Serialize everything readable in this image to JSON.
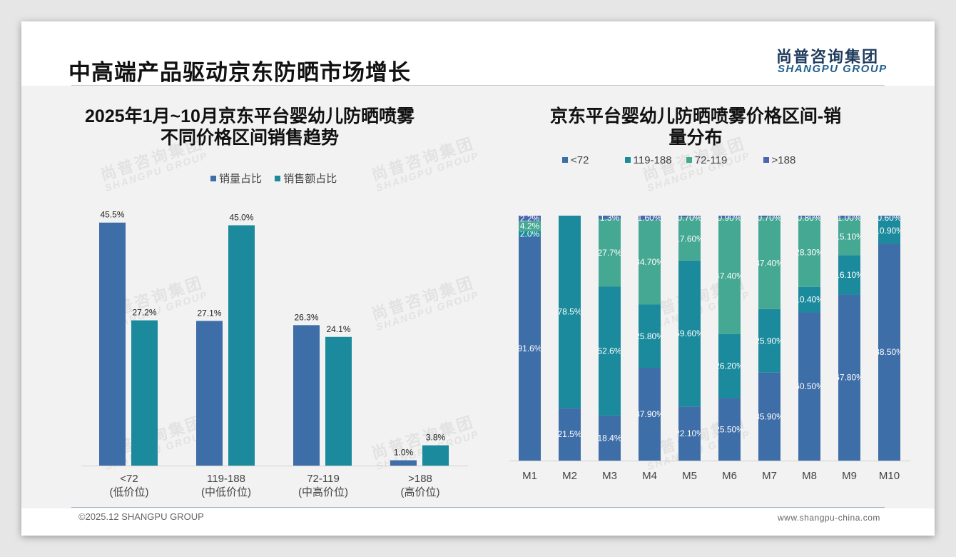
{
  "header": {
    "title": "中高端产品驱动京东防晒市场增长"
  },
  "logo": {
    "cn": "尚普咨询集团",
    "en": "SHANGPU GROUP"
  },
  "watermark": {
    "cn": "尚普咨询集团",
    "en": "SHANGPU GROUP"
  },
  "footer": {
    "copyright": "©2025.12 SHANGPU GROUP",
    "website": "www.shangpu-china.com"
  },
  "colors": {
    "blue": "#3e6ea8",
    "teal": "#1a8a9c",
    "green": "#44a892",
    "indigo": "#4a66ad"
  },
  "chart_data": [
    {
      "type": "bar",
      "title_line1": "2025年1月~10月京东平台婴幼儿防晒喷雾",
      "title_line2": "不同价格区间销售趋势",
      "categories": [
        "<72",
        "119-188",
        "72-119",
        ">188"
      ],
      "category_sublabels": [
        "(低价位)",
        "(中低价位)",
        "(中高价位)",
        "(高价位)"
      ],
      "series": [
        {
          "name": "销量占比",
          "values": [
            45.5,
            27.1,
            26.3,
            1.0
          ],
          "labels": [
            "45.5%",
            "27.1%",
            "26.3%",
            "1.0%"
          ]
        },
        {
          "name": "销售额占比",
          "values": [
            27.2,
            45.0,
            24.1,
            3.8
          ],
          "labels": [
            "27.2%",
            "45.0%",
            "24.1%",
            "3.8%"
          ]
        }
      ],
      "ylim": [
        0,
        46
      ]
    },
    {
      "type": "bar",
      "stacked": true,
      "title_line1": "京东平台婴幼儿防晒喷雾价格区间-销",
      "title_line2": "量分布",
      "categories": [
        "M1",
        "M2",
        "M3",
        "M4",
        "M5",
        "M6",
        "M7",
        "M8",
        "M9",
        "M10"
      ],
      "series": [
        {
          "name": "<72",
          "values": [
            91.6,
            21.5,
            18.4,
            37.9,
            22.1,
            25.5,
            35.9,
            60.5,
            67.8,
            88.5
          ],
          "labels": [
            "91.6%",
            "21.5%",
            "18.4%",
            "37.90%",
            "22.10%",
            "25.50%",
            "35.90%",
            "60.50%",
            "67.80%",
            "88.50%"
          ]
        },
        {
          "name": "119-188",
          "values": [
            2.0,
            78.5,
            52.6,
            25.8,
            59.6,
            26.2,
            25.9,
            10.4,
            16.1,
            10.9
          ],
          "labels": [
            "2.0%",
            "78.5%",
            "52.6%",
            "25.80%",
            "59.60%",
            "26.20%",
            "25.90%",
            "10.40%",
            "16.10%",
            "10.90%"
          ]
        },
        {
          "name": "72-119",
          "values": [
            4.2,
            0.0,
            27.7,
            34.7,
            17.6,
            47.4,
            37.4,
            28.3,
            15.1,
            0.0
          ],
          "labels": [
            "4.2%",
            "",
            "27.7%",
            "34.70%",
            "17.60%",
            "47.40%",
            "37.40%",
            "28.30%",
            "15.10%",
            ""
          ]
        },
        {
          "name": ">188",
          "values": [
            2.2,
            0.0,
            1.3,
            1.6,
            0.7,
            0.9,
            0.7,
            0.8,
            1.0,
            0.6
          ],
          "labels": [
            "2.2%",
            "",
            "1.3%",
            "1.60%",
            "0.70%",
            "0.90%",
            "0.70%",
            "0.80%",
            "1.00%",
            "0.60%"
          ]
        }
      ],
      "ylim": [
        0,
        100
      ]
    }
  ]
}
